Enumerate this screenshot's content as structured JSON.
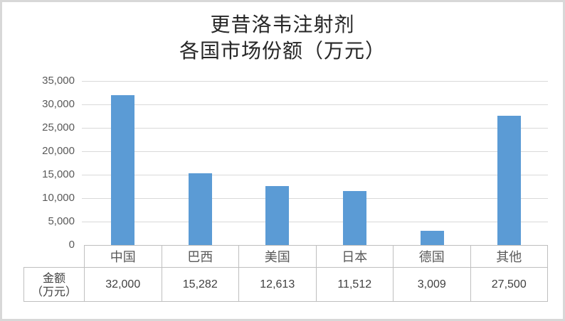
{
  "figure": {
    "background": "#ffffff",
    "border_color": "#d8d8d8"
  },
  "chart_data": {
    "type": "bar",
    "title_lines": [
      "更昔洛韦注射剂",
      "各国市场份额（万元）"
    ],
    "categories": [
      "中国",
      "巴西",
      "美国",
      "日本",
      "德国",
      "其他"
    ],
    "values": [
      32000,
      15282,
      12613,
      11512,
      3009,
      27500
    ],
    "values_display": [
      "32,000",
      "15,282",
      "12,613",
      "11,512",
      "3,009",
      "27,500"
    ],
    "series_name": "金额（万元）",
    "xlabel": "",
    "ylabel": "",
    "ylim": [
      0,
      35000
    ],
    "ytick_step": 5000,
    "ytick_labels": [
      "0",
      "5,000",
      "10,000",
      "15,000",
      "20,000",
      "25,000",
      "30,000",
      "35,000"
    ],
    "grid": true,
    "legend_position": "none",
    "data_table_shown": true,
    "row_label_lines": [
      "金额",
      "（万元）"
    ],
    "bar_color": "#5b9bd5",
    "gridline_color": "#d9d9d9",
    "axis_text_color": "#595959",
    "table_border_color": "#bfbfbf",
    "title_color": "#262626"
  }
}
